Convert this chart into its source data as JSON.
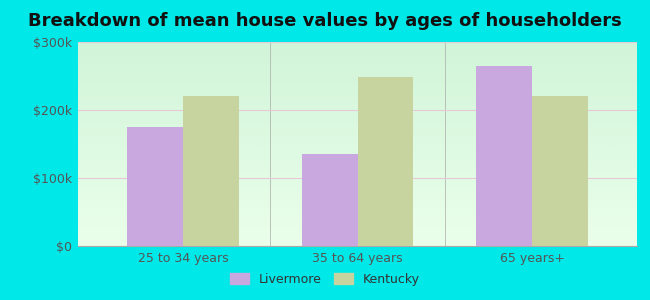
{
  "title": "Breakdown of mean house values by ages of householders",
  "categories": [
    "25 to 34 years",
    "35 to 64 years",
    "65 years+"
  ],
  "livermore_values": [
    175000,
    135000,
    265000
  ],
  "kentucky_values": [
    220000,
    248000,
    220000
  ],
  "livermore_color": "#c9a8e0",
  "kentucky_color": "#c8d4a0",
  "background_outer": "#00e8e8",
  "ylim": [
    0,
    300000
  ],
  "yticks": [
    0,
    100000,
    200000,
    300000
  ],
  "ytick_labels": [
    "$0",
    "$100k",
    "$200k",
    "$300k"
  ],
  "legend_labels": [
    "Livermore",
    "Kentucky"
  ],
  "bar_width": 0.32,
  "title_fontsize": 13,
  "tick_fontsize": 9,
  "legend_fontsize": 9
}
